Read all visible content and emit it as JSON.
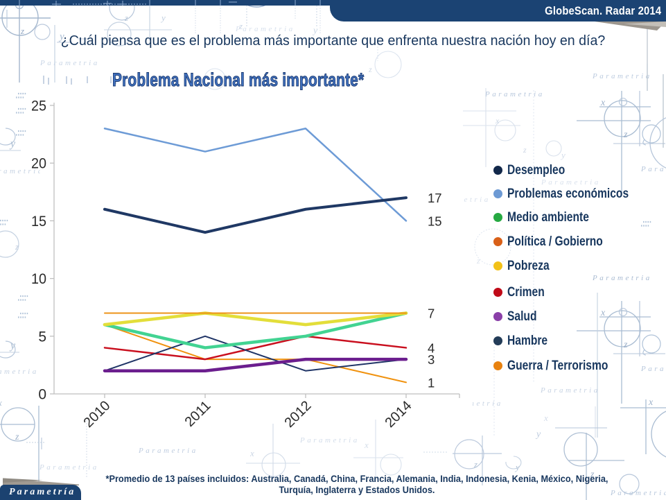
{
  "banner": {
    "title": "GlobeScan. Radar 2014"
  },
  "header": {
    "question": "¿Cuál piensa que es el problema más importante que enfrenta nuestra nación hoy en día?"
  },
  "watermark": {
    "text": "Parametria"
  },
  "logo": {
    "text": "Parametría"
  },
  "footnote": {
    "line1": "*Promedio de 13 países incluidos: Australia, Canadá, China, Francia, Alemania, India, Indonesia, Kenia, México, Nigeria,",
    "line2": "Turquía, Inglaterra y Estados Unidos."
  },
  "colors": {
    "banner_navy": "#1B4373",
    "text_navy": "#17365D",
    "chart_title_fill": "#3F6FBC",
    "axis_gray": "#BFBFBF",
    "tick_label": "#2B2B2B"
  },
  "chart_data": {
    "type": "line",
    "title": "Problema Nacional más importante*",
    "categories": [
      "2010",
      "2011",
      "2012",
      "2014"
    ],
    "ylim": [
      0,
      25
    ],
    "yticks": [
      0,
      5,
      10,
      15,
      20,
      25
    ],
    "grid": false,
    "legend_position": "right",
    "series": [
      {
        "name": "Desempleo",
        "values": [
          16,
          14,
          16,
          17
        ],
        "color": "#1F3864",
        "line_width": 4,
        "end_label": "17",
        "legend_dot": "#12284A"
      },
      {
        "name": "Problemas económicos",
        "values": [
          23,
          21,
          23,
          15
        ],
        "color": "#6D9BD6",
        "line_width": 2.5,
        "end_label": "15",
        "legend_dot": "#6D9AD4"
      },
      {
        "name": "Medio ambiente",
        "values": [
          6,
          4,
          5,
          7
        ],
        "color": "#42D392",
        "line_width": 4.5,
        "end_label": null,
        "legend_dot": "#26A942"
      },
      {
        "name": "Política / Gobierno",
        "values": [
          7,
          7,
          7,
          7
        ],
        "color": "#ED9318",
        "line_width": 2,
        "end_label": "7",
        "legend_dot": "#D96018"
      },
      {
        "name": "Pobreza",
        "values": [
          6,
          7,
          6,
          7
        ],
        "color": "#E3DE3A",
        "line_width": 4.5,
        "end_label": null,
        "legend_dot": "#F2C118"
      },
      {
        "name": "Crimen",
        "values": [
          4,
          3,
          5,
          4
        ],
        "color": "#C90F1E",
        "line_width": 2.5,
        "end_label": "4",
        "legend_dot": "#C00A18"
      },
      {
        "name": "Salud",
        "values": [
          2,
          2,
          3,
          3
        ],
        "color": "#6B1E8E",
        "line_width": 4.5,
        "end_label": "3",
        "legend_dot": "#8A3FA8"
      },
      {
        "name": "Hambre",
        "values": [
          2,
          5,
          2,
          3
        ],
        "color": "#1F3466",
        "line_width": 2,
        "end_label": null,
        "legend_dot": "#233C58"
      },
      {
        "name": "Guerra / Terrorismo",
        "values": [
          6,
          3,
          3,
          1
        ],
        "color": "#F0920F",
        "line_width": 2,
        "end_label": "1",
        "legend_dot": "#E8820F"
      }
    ]
  }
}
